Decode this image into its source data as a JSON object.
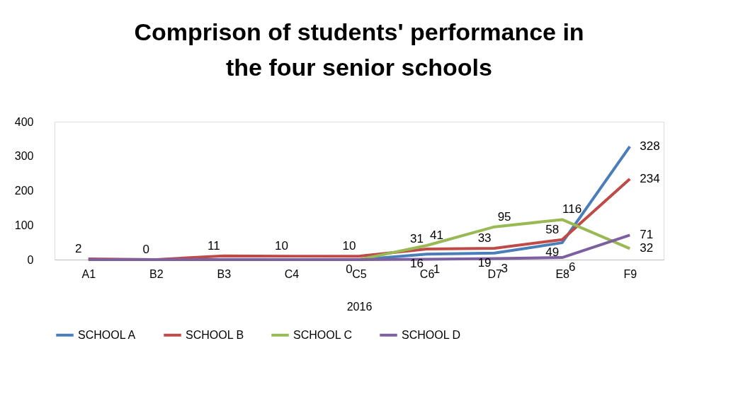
{
  "chart_data": {
    "type": "line",
    "title": "Comprison of students' performance in the four senior schools",
    "xlabel": "2016",
    "categories": [
      "A1",
      "B2",
      "B3",
      "C4",
      "C5",
      "C6",
      "D7",
      "E8",
      "F9"
    ],
    "series": [
      {
        "name": "SCHOOL A",
        "color": "#4a7ebb",
        "values": [
          null,
          null,
          null,
          null,
          0,
          16,
          19,
          49,
          328
        ],
        "value_labels": [
          null,
          null,
          null,
          null,
          "0",
          "16",
          "19",
          "49",
          "328"
        ]
      },
      {
        "name": "SCHOOL B",
        "color": "#be4b48",
        "values": [
          2,
          0,
          11,
          10,
          10,
          31,
          33,
          58,
          234
        ],
        "value_labels": [
          "2",
          "0",
          "11",
          "10",
          "10",
          "31",
          "33",
          "58",
          "234"
        ]
      },
      {
        "name": "SCHOOL C",
        "color": "#98b954",
        "values": [
          null,
          null,
          null,
          null,
          0,
          41,
          95,
          116,
          32
        ],
        "value_labels": [
          null,
          null,
          null,
          null,
          null,
          "41",
          "95",
          "116",
          "32"
        ]
      },
      {
        "name": "SCHOOL D",
        "color": "#7d60a0",
        "values": [
          0,
          0,
          0,
          0,
          0,
          1,
          3,
          6,
          71
        ],
        "value_labels": [
          null,
          null,
          null,
          null,
          null,
          "1",
          "3",
          "6",
          "71"
        ]
      }
    ],
    "ylim": [
      0,
      400
    ],
    "yticks": [
      0,
      100,
      200,
      300,
      400
    ],
    "grid": false,
    "legend": "bottom",
    "marker": "none",
    "line_style": "solid"
  }
}
